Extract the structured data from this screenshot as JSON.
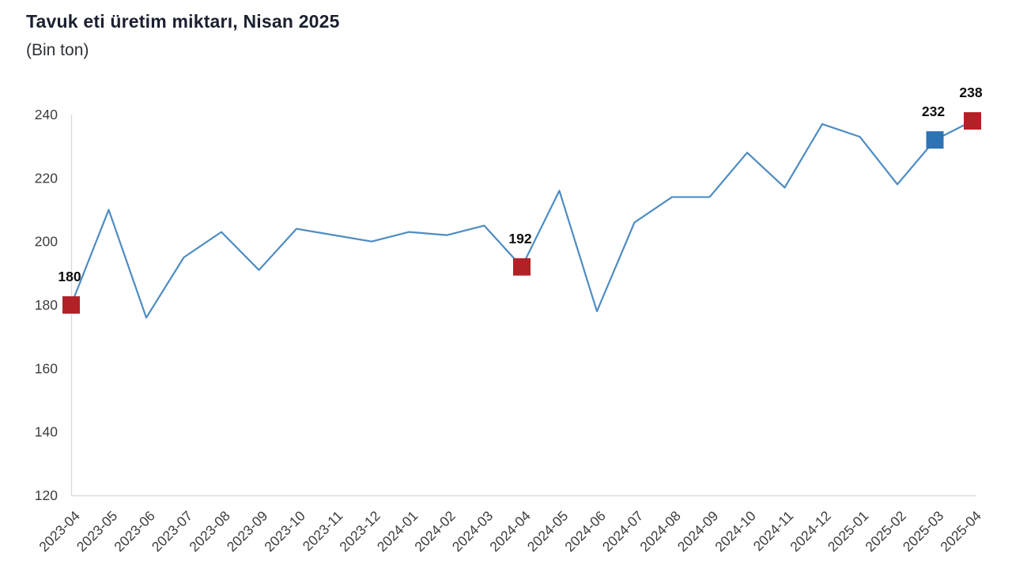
{
  "chart_data": {
    "type": "line",
    "title": "Tavuk eti üretim miktarı, Nisan 2025",
    "subtitle": "(Bin ton)",
    "categories": [
      "2023-04",
      "2023-05",
      "2023-06",
      "2023-07",
      "2023-08",
      "2023-09",
      "2023-10",
      "2023-11",
      "2023-12",
      "2024-01",
      "2024-02",
      "2024-03",
      "2024-04",
      "2024-05",
      "2024-06",
      "2024-07",
      "2024-08",
      "2024-09",
      "2024-10",
      "2024-11",
      "2024-12",
      "2025-01",
      "2025-02",
      "2025-03",
      "2025-04"
    ],
    "values": [
      180,
      210,
      176,
      195,
      203,
      191,
      204,
      202,
      200,
      203,
      202,
      205,
      192,
      216,
      178,
      206,
      214,
      214,
      228,
      217,
      237,
      233,
      218,
      232,
      238
    ],
    "ylim": [
      120,
      240
    ],
    "yticks": [
      120,
      140,
      160,
      180,
      200,
      220,
      240
    ],
    "xlabel": "",
    "ylabel": "",
    "grid": false,
    "legend": "none",
    "line_color": "#4d8cc3",
    "axis_color": "#d9d9d9",
    "tick_label_color": "#3d3d3d",
    "point_label_color": "#0d0d0d",
    "highlighted_points": [
      {
        "category": "2023-04",
        "value": 180,
        "label": "180",
        "marker_color": "#b22126"
      },
      {
        "category": "2024-04",
        "value": 192,
        "label": "192",
        "marker_color": "#b22126"
      },
      {
        "category": "2025-03",
        "value": 232,
        "label": "232",
        "marker_color": "#2e74b5"
      },
      {
        "category": "2025-04",
        "value": 238,
        "label": "238",
        "marker_color": "#b22126"
      }
    ]
  }
}
